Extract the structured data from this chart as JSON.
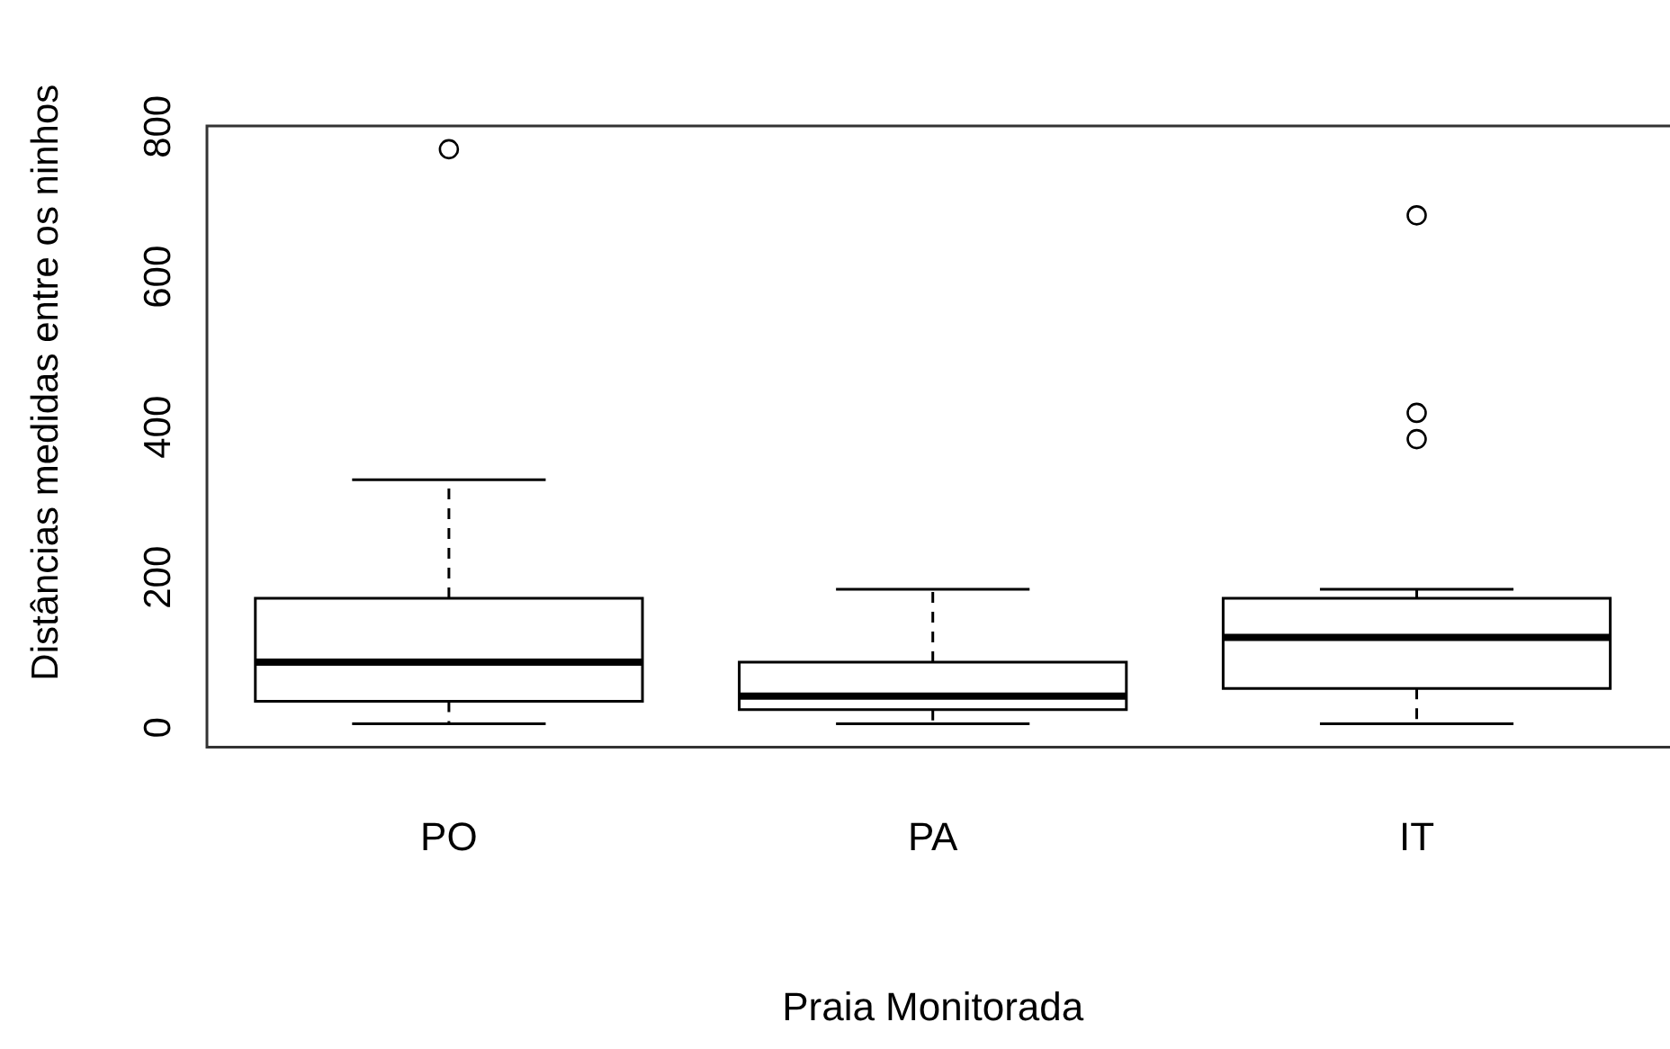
{
  "chart_data": {
    "type": "box",
    "xlabel": "Praia Monitorada",
    "ylabel": "Distâncias medidas entre os ninhos",
    "categories": [
      "PO",
      "PA",
      "IT"
    ],
    "boxes": [
      {
        "low": 5,
        "q1": 35,
        "median": 87,
        "q3": 172,
        "high": 330,
        "outliers": [
          770
        ]
      },
      {
        "low": 5,
        "q1": 24,
        "median": 42,
        "q3": 87,
        "high": 184
      },
      {
        "low": 5,
        "q1": 52,
        "median": 120,
        "q3": 172,
        "high": 184,
        "outliers": [
          682,
          419,
          384
        ]
      }
    ],
    "ylim": [
      -26,
      801
    ],
    "yticks": [
      0,
      200,
      400,
      600,
      800
    ],
    "grid": false,
    "legend": false
  }
}
